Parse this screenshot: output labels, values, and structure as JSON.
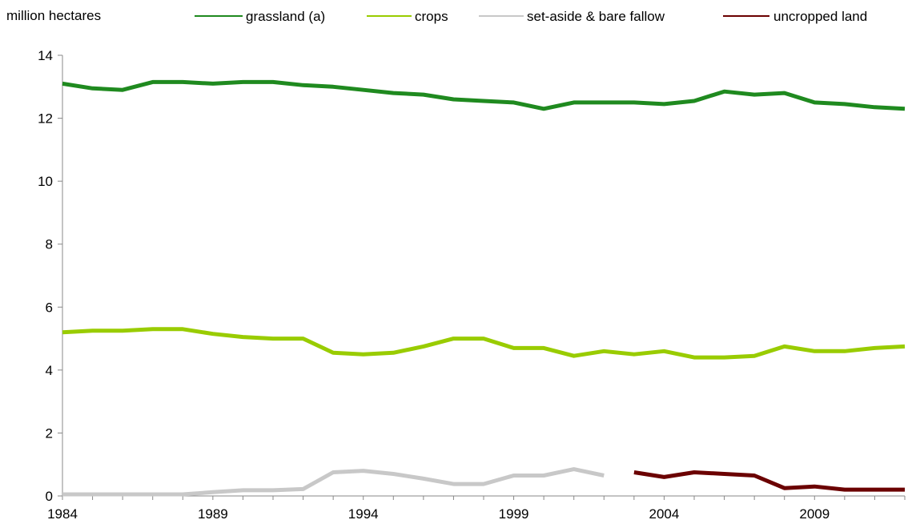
{
  "chart_data": {
    "type": "line",
    "ylabel": "million hectares",
    "xlabel": "",
    "ylim": [
      0,
      14
    ],
    "y_ticks": [
      0,
      2,
      4,
      6,
      8,
      10,
      12,
      14
    ],
    "xlim": [
      1984,
      2012
    ],
    "x_tick_labels": [
      "1984",
      "1989",
      "1994",
      "1999",
      "2004",
      "2009"
    ],
    "grid": false,
    "legend_position": "top",
    "x": [
      1984,
      1985,
      1986,
      1987,
      1988,
      1989,
      1990,
      1991,
      1992,
      1993,
      1994,
      1995,
      1996,
      1997,
      1998,
      1999,
      2000,
      2001,
      2002,
      2003,
      2004,
      2005,
      2006,
      2007,
      2008,
      2009,
      2010,
      2011,
      2012
    ],
    "series": [
      {
        "name": "grassland (a)",
        "color": "#1f8a1f",
        "values": [
          13.1,
          12.95,
          12.9,
          13.15,
          13.15,
          13.1,
          13.15,
          13.15,
          13.05,
          13.0,
          12.9,
          12.8,
          12.75,
          12.6,
          12.55,
          12.5,
          12.3,
          12.5,
          12.5,
          12.5,
          12.45,
          12.55,
          12.85,
          12.75,
          12.8,
          12.5,
          12.45,
          12.35,
          12.3
        ]
      },
      {
        "name": "crops",
        "color": "#99cc00",
        "values": [
          5.2,
          5.25,
          5.25,
          5.3,
          5.3,
          5.15,
          5.05,
          5.0,
          5.0,
          4.55,
          4.5,
          4.55,
          4.75,
          5.0,
          5.0,
          4.7,
          4.7,
          4.45,
          4.6,
          4.5,
          4.6,
          4.4,
          4.4,
          4.45,
          4.75,
          4.6,
          4.6,
          4.7,
          4.75
        ]
      },
      {
        "name": "set-aside & bare fallow",
        "color": "#c8c8c8",
        "values": [
          0.05,
          0.05,
          0.05,
          0.05,
          0.05,
          0.12,
          0.18,
          0.18,
          0.22,
          0.75,
          0.8,
          0.7,
          0.55,
          0.38,
          0.38,
          0.65,
          0.65,
          0.85,
          0.65,
          null,
          null,
          null,
          null,
          null,
          null,
          null,
          null,
          null,
          null
        ]
      },
      {
        "name": "uncropped land",
        "color": "#6b0000",
        "values": [
          null,
          null,
          null,
          null,
          null,
          null,
          null,
          null,
          null,
          null,
          null,
          null,
          null,
          null,
          null,
          null,
          null,
          null,
          null,
          0.75,
          0.6,
          0.75,
          0.7,
          0.65,
          0.25,
          0.3,
          0.2,
          0.2,
          0.2
        ]
      }
    ]
  }
}
